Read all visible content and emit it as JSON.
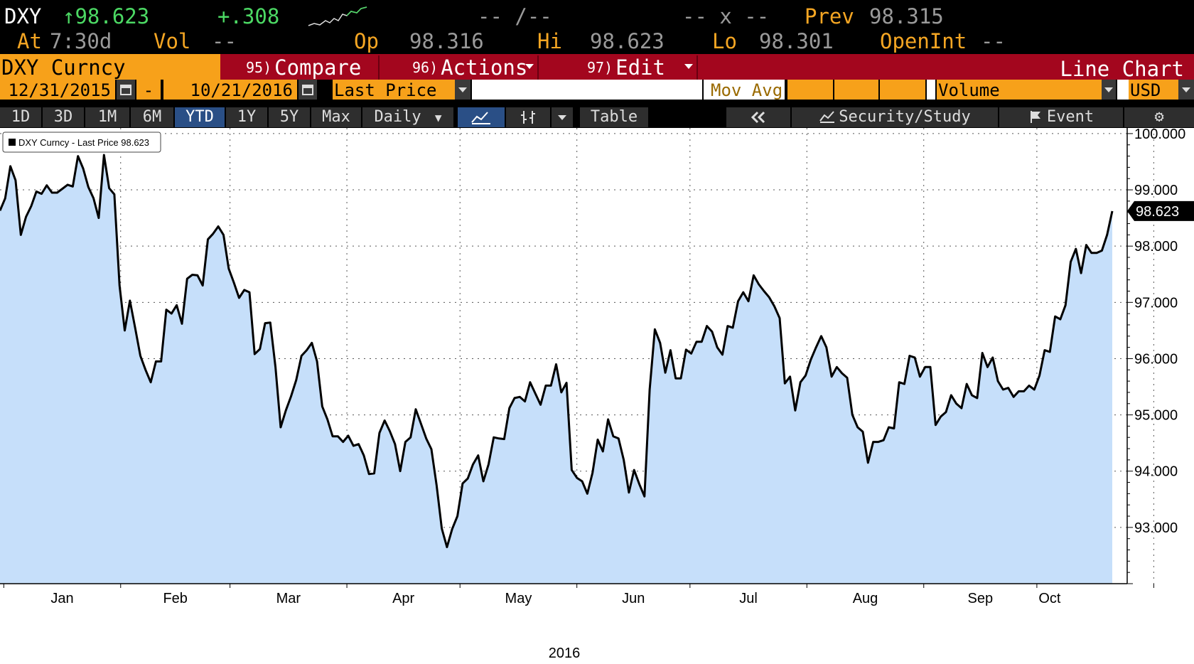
{
  "header": {
    "ticker": "DXY",
    "up_arrow": "↑",
    "last": "98.623",
    "change": "+.308",
    "dash_slash": "-- /--",
    "dash_x": "-- x --",
    "prev_label": "Prev",
    "prev_value": "98.315",
    "at_label": "At",
    "time": "7:30d",
    "vol_label": "Vol",
    "vol_value": "--",
    "op_label": "Op",
    "op_value": "98.316",
    "hi_label": "Hi",
    "hi_value": "98.623",
    "lo_label": "Lo",
    "lo_value": "98.301",
    "openint_label": "OpenInt",
    "openint_value": "--"
  },
  "toolbar": {
    "security": "DXY Curncy",
    "compare_num": "95)",
    "compare": "Compare",
    "actions_num": "96)",
    "actions": "Actions",
    "edit_num": "97)",
    "edit": "Edit",
    "chart_type": "Line Chart"
  },
  "daterow": {
    "start": "12/31/2015",
    "sep": "-",
    "end": "10/21/2016",
    "field": "Last Price",
    "mov_avg": "Mov Avg",
    "volume": "Volume",
    "currency": "USD"
  },
  "rangerow": {
    "ranges": [
      "1D",
      "3D",
      "1M",
      "6M",
      "YTD",
      "1Y",
      "5Y",
      "Max"
    ],
    "active": "YTD",
    "period": "Daily",
    "table": "Table",
    "security_study": "Security/Study",
    "event": "Event"
  },
  "colors": {
    "fill": "#c6dffa",
    "line": "#000000",
    "orange": "#f7a11a",
    "red": "#a3061e",
    "green": "#4cd964"
  },
  "chart_data": {
    "type": "area",
    "legend": "DXY Curncy - Last Price 98.623",
    "last_value_label": "98.623",
    "ylim": [
      92.0,
      100.1
    ],
    "yticks": [
      93.0,
      94.0,
      95.0,
      96.0,
      97.0,
      98.0,
      99.0,
      100.0
    ],
    "ytick_labels": [
      "93.000",
      "94.000",
      "95.000",
      "96.000",
      "97.000",
      "98.000",
      "99.000",
      "100.000"
    ],
    "xticks": [
      "Jan",
      "Feb",
      "Mar",
      "Apr",
      "May",
      "Jun",
      "Jul",
      "Aug",
      "Sep",
      "Oct"
    ],
    "xlabel": "2016",
    "grid": true,
    "x_start": "2015-12-31",
    "x_end": "2016-10-21",
    "series": [
      {
        "values": [
          98.63,
          98.85,
          99.42,
          99.17,
          98.2,
          98.52,
          98.71,
          98.97,
          98.93,
          99.08,
          98.95,
          98.95,
          99.02,
          99.09,
          99.06,
          99.6,
          99.38,
          99.05,
          98.85,
          98.5,
          99.62,
          99.03,
          98.92,
          97.3,
          96.5,
          97.03,
          96.55,
          96.05,
          95.8,
          95.58,
          95.95,
          95.95,
          96.87,
          96.8,
          96.95,
          96.62,
          97.42,
          97.49,
          97.48,
          97.3,
          98.12,
          98.22,
          98.35,
          98.2,
          97.6,
          97.35,
          97.08,
          97.22,
          97.18,
          96.08,
          96.17,
          96.63,
          96.64,
          95.85,
          94.78,
          95.08,
          95.33,
          95.62,
          96.05,
          96.15,
          96.28,
          95.95,
          95.15,
          94.92,
          94.62,
          94.62,
          94.52,
          94.63,
          94.45,
          94.48,
          94.28,
          93.95,
          93.96,
          94.68,
          94.9,
          94.71,
          94.48,
          94.0,
          94.52,
          94.6,
          95.1,
          94.84,
          94.58,
          94.39,
          93.75,
          92.98,
          92.65,
          92.97,
          93.2,
          93.78,
          93.87,
          94.12,
          94.28,
          93.82,
          94.12,
          94.6,
          94.58,
          94.57,
          95.12,
          95.3,
          95.32,
          95.24,
          95.58,
          95.38,
          95.18,
          95.52,
          95.52,
          95.9,
          95.4,
          95.57,
          94.02,
          93.88,
          93.82,
          93.6,
          93.97,
          94.56,
          94.35,
          94.92,
          94.62,
          94.58,
          94.2,
          93.62,
          94.02,
          93.77,
          93.55,
          95.45,
          96.52,
          96.28,
          95.75,
          96.15,
          95.65,
          95.65,
          96.16,
          96.09,
          96.3,
          96.3,
          96.58,
          96.48,
          96.2,
          96.07,
          96.58,
          96.55,
          97.02,
          97.18,
          97.02,
          97.48,
          97.32,
          97.2,
          97.09,
          96.93,
          96.72,
          95.56,
          95.68,
          95.08,
          95.58,
          95.7,
          95.98,
          96.2,
          96.4,
          96.2,
          95.68,
          95.85,
          95.74,
          95.66,
          95.0,
          94.78,
          94.7,
          94.15,
          94.52,
          94.52,
          94.55,
          94.78,
          94.76,
          95.58,
          95.55,
          96.05,
          96.02,
          95.68,
          95.85,
          95.85,
          94.82,
          94.97,
          95.05,
          95.35,
          95.2,
          95.12,
          95.55,
          95.35,
          95.3,
          96.1,
          95.85,
          96.02,
          95.6,
          95.45,
          95.48,
          95.32,
          95.42,
          95.42,
          95.52,
          95.45,
          95.7,
          96.15,
          96.12,
          96.75,
          96.7,
          96.95,
          97.72,
          97.95,
          97.52,
          98.02,
          97.88,
          97.88,
          97.92,
          98.2,
          98.623
        ]
      }
    ]
  }
}
